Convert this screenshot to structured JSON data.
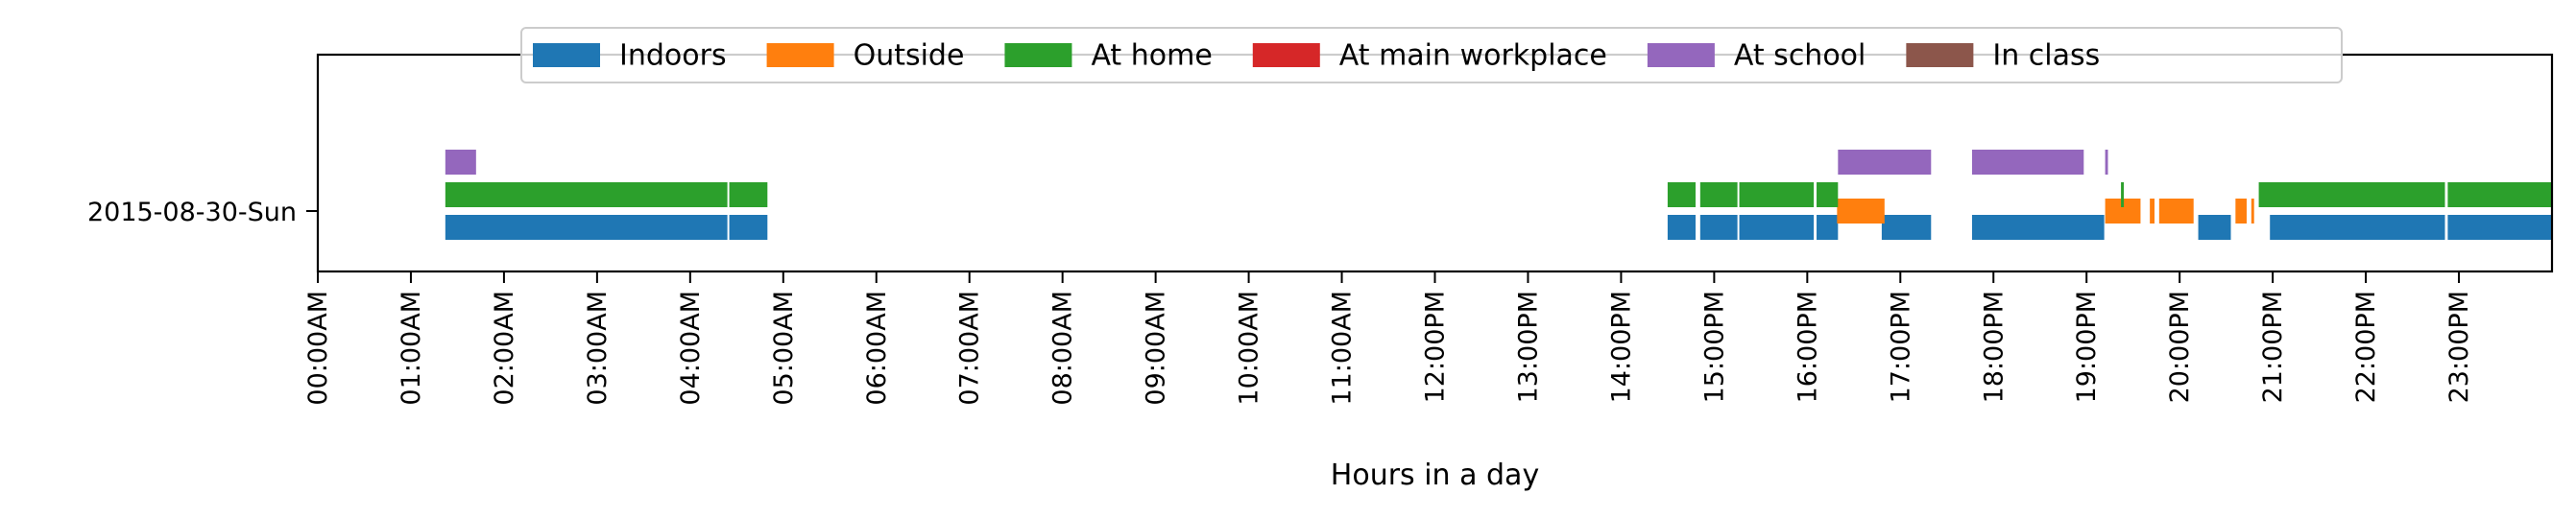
{
  "chart_data": {
    "type": "timeline",
    "xlabel": "Hours in a day",
    "ylabel": "",
    "xlim": [
      0,
      24
    ],
    "x_ticks": [
      "00:00AM",
      "01:00AM",
      "02:00AM",
      "03:00AM",
      "04:00AM",
      "05:00AM",
      "06:00AM",
      "07:00AM",
      "08:00AM",
      "09:00AM",
      "10:00AM",
      "11:00AM",
      "12:00PM",
      "13:00PM",
      "14:00PM",
      "15:00PM",
      "16:00PM",
      "17:00PM",
      "18:00PM",
      "19:00PM",
      "20:00PM",
      "21:00PM",
      "22:00PM",
      "23:00PM"
    ],
    "categories": [
      "2015-08-30-Sun"
    ],
    "legend_position": "top-center",
    "grid": false,
    "series": [
      {
        "name": "Indoors",
        "color": "#1f77b4",
        "level": 0,
        "intervals": [
          [
            1.37,
            4.4
          ],
          [
            4.42,
            4.83
          ],
          [
            14.5,
            14.8
          ],
          [
            14.85,
            15.25
          ],
          [
            15.27,
            16.07
          ],
          [
            16.1,
            16.33
          ],
          [
            16.8,
            17.33
          ],
          [
            17.77,
            19.18
          ],
          [
            19.17,
            19.19
          ],
          [
            20.2,
            20.55
          ],
          [
            20.97,
            22.85
          ],
          [
            22.88,
            24.0
          ]
        ]
      },
      {
        "name": "Outside",
        "color": "#ff7f0e",
        "level": 0.5,
        "intervals": [
          [
            16.32,
            16.83
          ],
          [
            19.2,
            19.58
          ],
          [
            19.68,
            19.73
          ],
          [
            19.78,
            20.15
          ],
          [
            20.6,
            20.72
          ],
          [
            20.77,
            20.8
          ]
        ]
      },
      {
        "name": "At home",
        "color": "#2ca02c",
        "level": 1,
        "intervals": [
          [
            1.37,
            4.4
          ],
          [
            4.42,
            4.83
          ],
          [
            14.5,
            14.8
          ],
          [
            14.85,
            15.25
          ],
          [
            15.27,
            16.07
          ],
          [
            16.1,
            16.33
          ],
          [
            19.37,
            19.4
          ],
          [
            20.85,
            22.85
          ],
          [
            22.88,
            24.0
          ]
        ]
      },
      {
        "name": "At main workplace",
        "color": "#d62728",
        "level": 1.5,
        "intervals": []
      },
      {
        "name": "At school",
        "color": "#9467bd",
        "level": 2,
        "intervals": [
          [
            1.37,
            1.7
          ],
          [
            16.33,
            17.33
          ],
          [
            17.77,
            18.97
          ],
          [
            19.2,
            19.23
          ]
        ]
      },
      {
        "name": "In class",
        "color": "#8c564b",
        "level": 2.5,
        "intervals": []
      }
    ]
  }
}
